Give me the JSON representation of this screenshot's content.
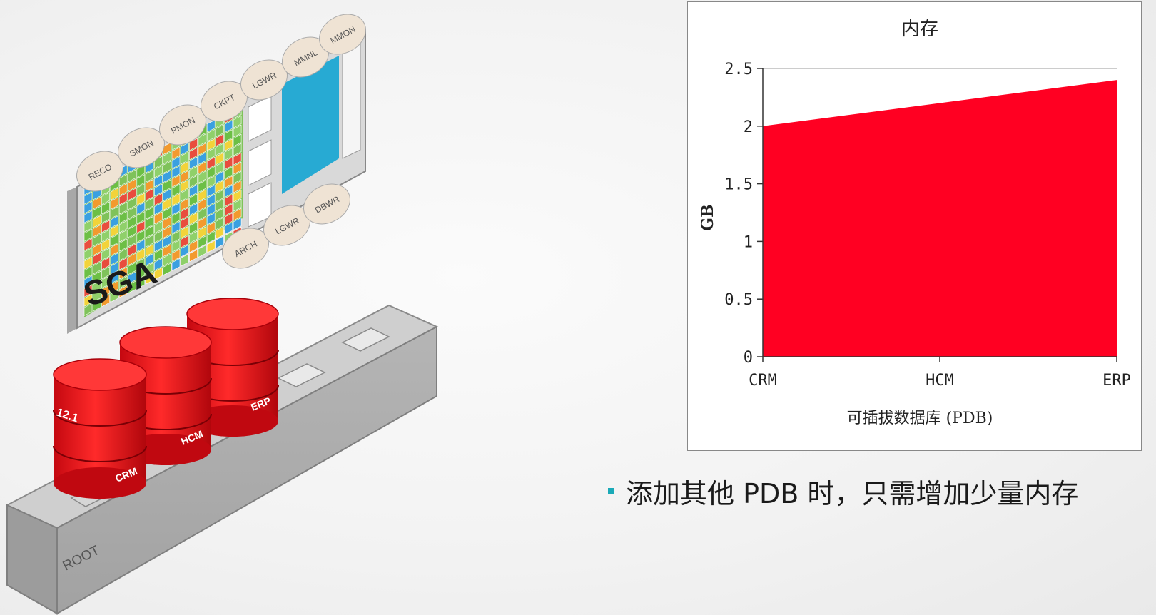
{
  "illustration": {
    "sga_label": "SGA",
    "root_label": "ROOT",
    "version_label": "12.1",
    "top_processes": [
      "RECO",
      "SMON",
      "PMON",
      "CKPT",
      "LGWR",
      "MMNL",
      "MMON"
    ],
    "bottom_processes": [
      "ARCH",
      "LGWR",
      "DBWR"
    ],
    "pdbs": [
      "CRM",
      "HCM",
      "ERP"
    ],
    "colors": {
      "cylinder": "#ee1c24",
      "cylinder_top": "#ff3a3a",
      "base": "#bdbdbd",
      "grid_blue": "#2ab4d8"
    }
  },
  "chart_data": {
    "type": "area",
    "title": "内存",
    "xlabel": "可插拔数据库 (PDB)",
    "ylabel": "GB",
    "categories": [
      "CRM",
      "HCM",
      "ERP"
    ],
    "series": [
      {
        "values": [
          2.0,
          2.2,
          2.4
        ]
      }
    ],
    "ylim": [
      0,
      2.5
    ],
    "yticks": [
      "0",
      "0.5",
      "1",
      "1.5",
      "2",
      "2.5"
    ],
    "fill_color": "#ff0022",
    "grid": false,
    "legend": "none"
  },
  "bullet": {
    "text": "添加其他 PDB 时，只需增加少量内存",
    "marker_color": "#1aaab8"
  }
}
